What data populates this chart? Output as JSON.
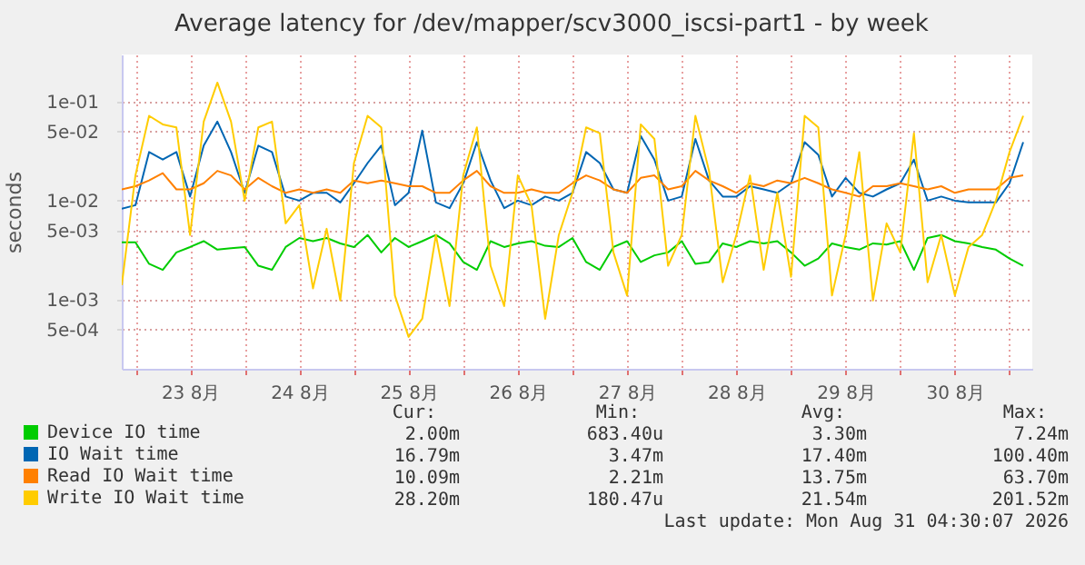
{
  "chart_data": {
    "type": "line",
    "title": "Average latency for /dev/mapper/scv3000_iscsi-part1 - by week",
    "ylabel": "seconds",
    "log": "y",
    "grid": true,
    "legend": "bottom left",
    "line_style": "solid",
    "x": [
      "2026-08-22T21:00",
      "2026-08-23T00:00",
      "2026-08-23T03:00",
      "2026-08-23T06:00",
      "2026-08-23T09:00",
      "2026-08-23T12:00",
      "2026-08-23T15:00",
      "2026-08-23T18:00",
      "2026-08-23T21:00",
      "2026-08-24T00:00",
      "2026-08-24T03:00",
      "2026-08-24T06:00",
      "2026-08-24T09:00",
      "2026-08-24T12:00",
      "2026-08-24T15:00",
      "2026-08-24T18:00",
      "2026-08-24T21:00",
      "2026-08-25T00:00",
      "2026-08-25T03:00",
      "2026-08-25T06:00",
      "2026-08-25T09:00",
      "2026-08-25T12:00",
      "2026-08-25T15:00",
      "2026-08-25T18:00",
      "2026-08-25T21:00",
      "2026-08-26T00:00",
      "2026-08-26T03:00",
      "2026-08-26T06:00",
      "2026-08-26T09:00",
      "2026-08-26T12:00",
      "2026-08-26T15:00",
      "2026-08-26T18:00",
      "2026-08-26T21:00",
      "2026-08-27T00:00",
      "2026-08-27T03:00",
      "2026-08-27T06:00",
      "2026-08-27T09:00",
      "2026-08-27T12:00",
      "2026-08-27T15:00",
      "2026-08-27T18:00",
      "2026-08-27T21:00",
      "2026-08-28T00:00",
      "2026-08-28T03:00",
      "2026-08-28T06:00",
      "2026-08-28T09:00",
      "2026-08-28T12:00",
      "2026-08-28T15:00",
      "2026-08-28T18:00",
      "2026-08-28T21:00",
      "2026-08-29T00:00",
      "2026-08-29T03:00",
      "2026-08-29T06:00",
      "2026-08-29T09:00",
      "2026-08-29T12:00",
      "2026-08-29T15:00",
      "2026-08-29T18:00",
      "2026-08-29T21:00",
      "2026-08-30T00:00",
      "2026-08-30T03:00",
      "2026-08-30T06:00",
      "2026-08-30T09:00",
      "2026-08-30T12:00",
      "2026-08-30T15:00",
      "2026-08-30T18:00",
      "2026-08-30T21:00",
      "2026-08-31T00:00",
      "2026-08-31T03:00"
    ],
    "xlim": [
      "2026-08-22T21:00",
      "2026-08-31T05:00"
    ],
    "xticks": [
      {
        "value": "2026-08-23T00:00",
        "label": null
      },
      {
        "value": "2026-08-23T12:00",
        "label": "23 8月"
      },
      {
        "value": "2026-08-24T00:00",
        "label": null
      },
      {
        "value": "2026-08-24T12:00",
        "label": "24 8月"
      },
      {
        "value": "2026-08-25T00:00",
        "label": null
      },
      {
        "value": "2026-08-25T12:00",
        "label": "25 8月"
      },
      {
        "value": "2026-08-26T00:00",
        "label": null
      },
      {
        "value": "2026-08-26T12:00",
        "label": "26 8月"
      },
      {
        "value": "2026-08-27T00:00",
        "label": null
      },
      {
        "value": "2026-08-27T12:00",
        "label": "27 8月"
      },
      {
        "value": "2026-08-28T00:00",
        "label": null
      },
      {
        "value": "2026-08-28T12:00",
        "label": "28 8月"
      },
      {
        "value": "2026-08-29T00:00",
        "label": null
      },
      {
        "value": "2026-08-29T12:00",
        "label": "29 8月"
      },
      {
        "value": "2026-08-30T00:00",
        "label": null
      },
      {
        "value": "2026-08-30T12:00",
        "label": "30 8月"
      },
      {
        "value": "2026-08-31T00:00",
        "label": null
      }
    ],
    "ylim": [
      0.0002,
      0.3
    ],
    "yticks": [
      {
        "value": 0.0005,
        "label": "5e-04"
      },
      {
        "value": 0.001,
        "label": "1e-03"
      },
      {
        "value": 0.005,
        "label": "5e-03"
      },
      {
        "value": 0.01,
        "label": "1e-02"
      },
      {
        "value": 0.05,
        "label": "5e-02"
      },
      {
        "value": 0.1,
        "label": "1e-01"
      }
    ],
    "series": [
      {
        "name": "Device IO time",
        "color": "#00cc00",
        "values": [
          0.0038,
          0.0038,
          0.0023,
          0.002,
          0.003,
          0.0034,
          0.0039,
          0.0032,
          0.0033,
          0.0034,
          0.0022,
          0.002,
          0.0034,
          0.0042,
          0.0039,
          0.0042,
          0.0037,
          0.0034,
          0.0045,
          0.003,
          0.0042,
          0.0034,
          0.0039,
          0.0045,
          0.0037,
          0.0024,
          0.002,
          0.0039,
          0.0034,
          0.0037,
          0.0039,
          0.0035,
          0.0034,
          0.0042,
          0.0024,
          0.002,
          0.0034,
          0.0039,
          0.0024,
          0.0028,
          0.003,
          0.0039,
          0.0023,
          0.0024,
          0.0037,
          0.0034,
          0.0039,
          0.0037,
          0.0039,
          0.003,
          0.0022,
          0.0026,
          0.0037,
          0.0034,
          0.0032,
          0.0037,
          0.0036,
          0.0039,
          0.002,
          0.0042,
          0.0045,
          0.0039,
          0.0037,
          0.0034,
          0.0032,
          0.0026,
          0.0022
        ]
      },
      {
        "name": "IO Wait time",
        "color": "#0066b3",
        "values": [
          0.0083,
          0.009,
          0.031,
          0.026,
          0.031,
          0.011,
          0.036,
          0.063,
          0.031,
          0.012,
          0.036,
          0.031,
          0.011,
          0.01,
          0.012,
          0.012,
          0.0096,
          0.015,
          0.024,
          0.036,
          0.009,
          0.012,
          0.051,
          0.0096,
          0.0084,
          0.015,
          0.039,
          0.016,
          0.0084,
          0.01,
          0.009,
          0.011,
          0.01,
          0.012,
          0.031,
          0.024,
          0.013,
          0.012,
          0.045,
          0.026,
          0.01,
          0.011,
          0.042,
          0.016,
          0.011,
          0.011,
          0.014,
          0.013,
          0.012,
          0.015,
          0.039,
          0.029,
          0.011,
          0.017,
          0.012,
          0.011,
          0.013,
          0.015,
          0.026,
          0.01,
          0.011,
          0.01,
          0.0096,
          0.0096,
          0.0096,
          0.015,
          0.039
        ]
      },
      {
        "name": "Read IO Wait time",
        "color": "#ff8000",
        "values": [
          0.013,
          0.014,
          0.016,
          0.019,
          0.013,
          0.013,
          0.015,
          0.02,
          0.018,
          0.013,
          0.017,
          0.014,
          0.012,
          0.013,
          0.012,
          0.013,
          0.012,
          0.016,
          0.015,
          0.016,
          0.015,
          0.014,
          0.014,
          0.012,
          0.012,
          0.016,
          0.02,
          0.014,
          0.012,
          0.012,
          0.013,
          0.012,
          0.012,
          0.015,
          0.018,
          0.016,
          0.013,
          0.012,
          0.017,
          0.018,
          0.013,
          0.014,
          0.02,
          0.016,
          0.014,
          0.012,
          0.015,
          0.014,
          0.016,
          0.015,
          0.017,
          0.015,
          0.013,
          0.012,
          0.011,
          0.014,
          0.014,
          0.015,
          0.014,
          0.013,
          0.014,
          0.012,
          0.013,
          0.013,
          0.013,
          0.017,
          0.018
        ]
      },
      {
        "name": "Write IO Wait time",
        "color": "#ffcc00",
        "values": [
          0.0014,
          0.018,
          0.072,
          0.059,
          0.055,
          0.0045,
          0.063,
          0.156,
          0.063,
          0.01,
          0.055,
          0.063,
          0.0059,
          0.009,
          0.0013,
          0.0052,
          0.00098,
          0.024,
          0.072,
          0.055,
          0.0011,
          0.00042,
          0.00064,
          0.0045,
          0.00086,
          0.018,
          0.055,
          0.0022,
          0.00086,
          0.018,
          0.009,
          0.00064,
          0.0045,
          0.012,
          0.055,
          0.048,
          0.003,
          0.0011,
          0.059,
          0.042,
          0.0022,
          0.0045,
          0.072,
          0.02,
          0.0015,
          0.0045,
          0.018,
          0.002,
          0.012,
          0.0017,
          0.072,
          0.055,
          0.0011,
          0.0045,
          0.031,
          0.00098,
          0.0059,
          0.003,
          0.048,
          0.0015,
          0.0045,
          0.0011,
          0.0034,
          0.0045,
          0.01,
          0.031,
          0.072
        ]
      }
    ],
    "annotations": [
      "Cur:",
      "Min:",
      "Avg:",
      "Max:",
      "2.00m",
      "683.40u",
      "3.30m",
      "7.24m",
      "16.79m",
      "3.47m",
      "17.40m",
      "100.40m",
      "10.09m",
      "2.21m",
      "13.75m",
      "63.70m",
      "28.20m",
      "180.47u",
      "21.54m",
      "201.52m",
      "Last update: Mon Aug 31 04:30:07 2026"
    ]
  }
}
